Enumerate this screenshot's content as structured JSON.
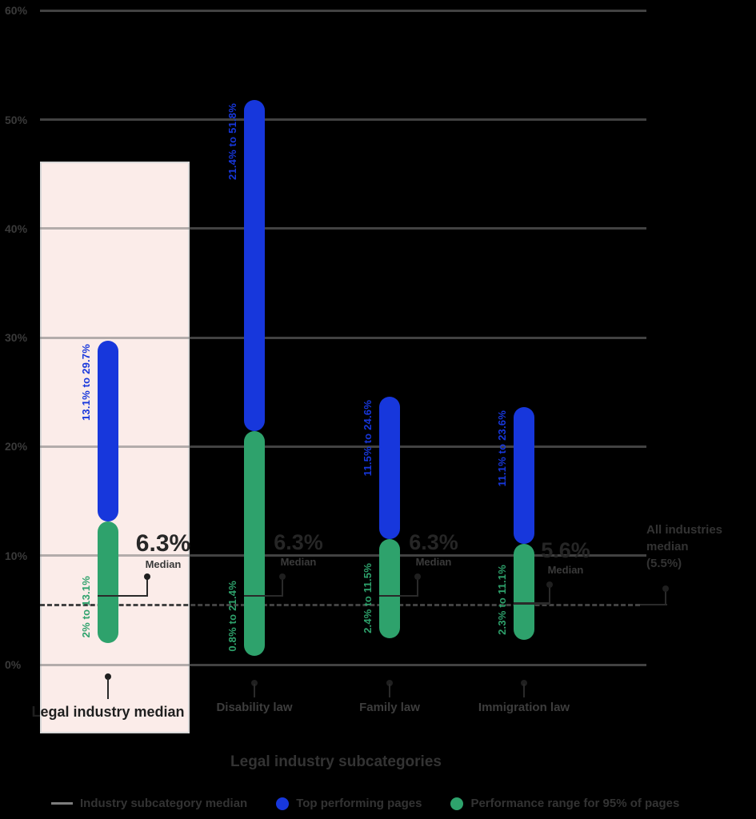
{
  "colors": {
    "blue": "#1737DC",
    "green": "#2EA26C",
    "pink_box": "#fbece9",
    "grid": "rgba(120,120,120,0.55)",
    "text_dark": "#3a3a3a",
    "pointer": "#1f1f1f"
  },
  "chart_data": {
    "type": "range-bar",
    "xlabel": "Legal industry subcategories",
    "ylabel": "",
    "ylim": [
      0,
      60
    ],
    "y_ticks": [
      {
        "pct": 60,
        "label": "60%"
      },
      {
        "pct": 50,
        "label": "50%"
      },
      {
        "pct": 40,
        "label": "40%"
      },
      {
        "pct": 30,
        "label": "30%"
      },
      {
        "pct": 20,
        "label": "20%"
      },
      {
        "pct": 10,
        "label": "10%"
      },
      {
        "pct": 0,
        "label": "0%"
      }
    ],
    "all_industries_median": {
      "value": 5.5,
      "label_line1": "All industries median",
      "label_line2": "(5.5%)"
    },
    "groups": [
      {
        "name": "Legal industry median",
        "highlight": true,
        "green_range": [
          2.0,
          13.1
        ],
        "green_label": "2% to 13.1%",
        "blue_range": [
          13.1,
          29.7
        ],
        "blue_label": "13.1% to 29.7%",
        "median": 6.3,
        "median_label": "6.3%",
        "median_sub": "Median"
      },
      {
        "name": "Disability law",
        "highlight": false,
        "green_range": [
          0.8,
          21.4
        ],
        "green_label": "0.8% to 21.4%",
        "blue_range": [
          21.4,
          51.8
        ],
        "blue_label": "21.4% to 51.8%",
        "median": 6.3,
        "median_label": "6.3%",
        "median_sub": "Median"
      },
      {
        "name": "Family law",
        "highlight": false,
        "green_range": [
          2.4,
          11.5
        ],
        "green_label": "2.4% to 11.5%",
        "blue_range": [
          11.5,
          24.6
        ],
        "blue_label": "11.5% to 24.6%",
        "median": 6.3,
        "median_label": "6.3%",
        "median_sub": "Median"
      },
      {
        "name": "Immigration law",
        "highlight": false,
        "green_range": [
          2.3,
          11.1
        ],
        "green_label": "2.3% to 11.1%",
        "blue_range": [
          11.1,
          23.6
        ],
        "blue_label": "11.1% to 23.6%",
        "median": 5.6,
        "median_label": "5.6%",
        "median_sub": "Median"
      }
    ]
  },
  "legend": {
    "items": [
      {
        "swatch": "line",
        "label": "Industry subcategory median"
      },
      {
        "swatch": "blue-dot",
        "label": "Top performing pages"
      },
      {
        "swatch": "green-dot",
        "label": "Performance range for 95% of pages"
      }
    ]
  }
}
